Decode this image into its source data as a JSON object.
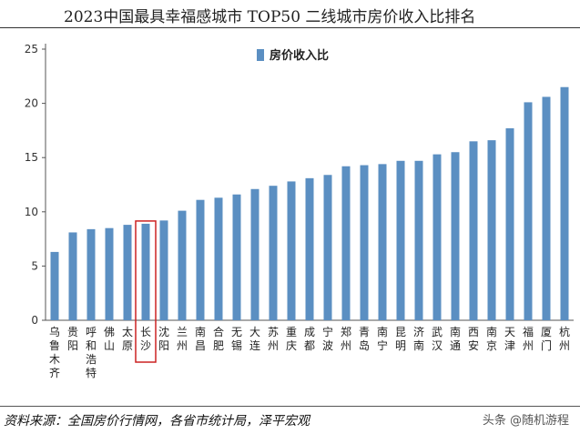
{
  "page": {
    "title": "2023中国最具幸福感城市 TOP50 二线城市房价收入比排名",
    "source": "资料来源：全国房价行情网，各省市统计局，泽平宏观",
    "watermark": "头条 @随机游程"
  },
  "colors": {
    "bar": "#5b8fc2",
    "axis": "#555555",
    "highlight_box": "#cc2222"
  },
  "chart_data": {
    "type": "bar",
    "categories": [
      "乌鲁木齐",
      "贵阳",
      "呼和浩特",
      "佛山",
      "太原",
      "长沙",
      "沈阳",
      "兰州",
      "南昌",
      "合肥",
      "无锡",
      "大连",
      "苏州",
      "重庆",
      "成都",
      "宁波",
      "郑州",
      "青岛",
      "南宁",
      "昆明",
      "济南",
      "武汉",
      "南通",
      "西安",
      "南京",
      "天津",
      "福州",
      "厦门",
      "杭州"
    ],
    "series": [
      {
        "name": "房价收入比",
        "values": [
          6.3,
          8.1,
          8.4,
          8.5,
          8.8,
          8.9,
          9.2,
          10.1,
          11.1,
          11.3,
          11.6,
          12.1,
          12.4,
          12.8,
          13.1,
          13.4,
          14.2,
          14.3,
          14.4,
          14.7,
          14.7,
          15.3,
          15.5,
          16.5,
          16.6,
          17.7,
          20.1,
          20.6,
          21.5
        ]
      }
    ],
    "yticks": [
      0,
      5,
      10,
      15,
      20,
      25
    ],
    "ylim": [
      0,
      25
    ],
    "grid": false,
    "legend_position": "top-center",
    "highlighted_category": "长沙"
  }
}
